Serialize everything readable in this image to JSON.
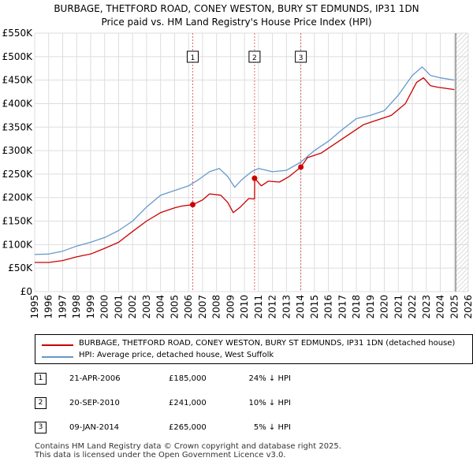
{
  "title": {
    "line1": "BURBAGE, THETFORD ROAD, CONEY WESTON, BURY ST EDMUNDS, IP31 1DN",
    "line2": "Price paid vs. HM Land Registry's House Price Index (HPI)"
  },
  "chart_data": {
    "type": "line",
    "title": "BURBAGE, THETFORD ROAD, CONEY WESTON, BURY ST EDMUNDS, IP31 1DN — Price paid vs. HM Land Registry's House Price Index (HPI)",
    "xlabel": "",
    "ylabel": "",
    "xlim": [
      1995,
      2026
    ],
    "ylim": [
      0,
      550000
    ],
    "grid": true,
    "x_ticks": [
      1995,
      1996,
      1997,
      1998,
      1999,
      2000,
      2001,
      2002,
      2003,
      2004,
      2005,
      2006,
      2007,
      2008,
      2009,
      2010,
      2011,
      2012,
      2013,
      2014,
      2015,
      2016,
      2017,
      2018,
      2019,
      2020,
      2021,
      2022,
      2023,
      2024,
      2025,
      2026
    ],
    "y_ticks": [
      {
        "value": 0,
        "label": "£0"
      },
      {
        "value": 50000,
        "label": "£50K"
      },
      {
        "value": 100000,
        "label": "£100K"
      },
      {
        "value": 150000,
        "label": "£150K"
      },
      {
        "value": 200000,
        "label": "£200K"
      },
      {
        "value": 250000,
        "label": "£250K"
      },
      {
        "value": 300000,
        "label": "£300K"
      },
      {
        "value": 350000,
        "label": "£350K"
      },
      {
        "value": 400000,
        "label": "£400K"
      },
      {
        "value": 450000,
        "label": "£450K"
      },
      {
        "value": 500000,
        "label": "£500K"
      },
      {
        "value": 550000,
        "label": "£550K"
      }
    ],
    "future_shading_from": 2025.1,
    "series": [
      {
        "name": "BURBAGE, THETFORD ROAD, CONEY WESTON, BURY ST EDMUNDS, IP31 1DN (detached house)",
        "color": "#cc0000",
        "points": [
          [
            1995.0,
            62000
          ],
          [
            1996.0,
            62000
          ],
          [
            1997.0,
            66000
          ],
          [
            1998.0,
            74000
          ],
          [
            1999.0,
            80000
          ],
          [
            2000.0,
            92000
          ],
          [
            2001.0,
            105000
          ],
          [
            2002.0,
            128000
          ],
          [
            2003.0,
            150000
          ],
          [
            2004.0,
            168000
          ],
          [
            2005.0,
            178000
          ],
          [
            2005.5,
            182000
          ],
          [
            2006.3,
            185000
          ],
          [
            2007.0,
            195000
          ],
          [
            2007.5,
            208000
          ],
          [
            2008.3,
            205000
          ],
          [
            2008.8,
            190000
          ],
          [
            2009.2,
            168000
          ],
          [
            2009.7,
            180000
          ],
          [
            2010.3,
            198000
          ],
          [
            2010.72,
            197000
          ],
          [
            2010.73,
            241000
          ],
          [
            2011.2,
            225000
          ],
          [
            2011.7,
            235000
          ],
          [
            2012.5,
            233000
          ],
          [
            2013.2,
            245000
          ],
          [
            2014.03,
            265000
          ],
          [
            2014.5,
            285000
          ],
          [
            2015.5,
            295000
          ],
          [
            2016.5,
            315000
          ],
          [
            2017.5,
            335000
          ],
          [
            2018.5,
            355000
          ],
          [
            2019.5,
            365000
          ],
          [
            2020.5,
            375000
          ],
          [
            2021.5,
            400000
          ],
          [
            2022.3,
            445000
          ],
          [
            2022.8,
            455000
          ],
          [
            2023.3,
            438000
          ],
          [
            2023.8,
            435000
          ],
          [
            2024.5,
            432000
          ],
          [
            2025.0,
            430000
          ]
        ]
      },
      {
        "name": "HPI: Average price, detached house, West Suffolk",
        "color": "#6699cc",
        "points": [
          [
            1995.0,
            79000
          ],
          [
            1996.0,
            80000
          ],
          [
            1997.0,
            86000
          ],
          [
            1998.0,
            97000
          ],
          [
            1999.0,
            105000
          ],
          [
            2000.0,
            115000
          ],
          [
            2001.0,
            130000
          ],
          [
            2002.0,
            150000
          ],
          [
            2003.0,
            180000
          ],
          [
            2004.0,
            205000
          ],
          [
            2005.0,
            215000
          ],
          [
            2006.0,
            225000
          ],
          [
            2006.7,
            238000
          ],
          [
            2007.5,
            255000
          ],
          [
            2008.2,
            262000
          ],
          [
            2008.8,
            245000
          ],
          [
            2009.3,
            222000
          ],
          [
            2009.8,
            238000
          ],
          [
            2010.5,
            255000
          ],
          [
            2011.0,
            262000
          ],
          [
            2012.0,
            255000
          ],
          [
            2013.0,
            258000
          ],
          [
            2014.0,
            275000
          ],
          [
            2015.0,
            300000
          ],
          [
            2016.0,
            320000
          ],
          [
            2017.0,
            345000
          ],
          [
            2018.0,
            368000
          ],
          [
            2019.0,
            375000
          ],
          [
            2020.0,
            385000
          ],
          [
            2021.0,
            418000
          ],
          [
            2022.0,
            460000
          ],
          [
            2022.7,
            478000
          ],
          [
            2023.3,
            460000
          ],
          [
            2024.0,
            455000
          ],
          [
            2025.0,
            450000
          ]
        ]
      }
    ],
    "sales": [
      {
        "id": "1",
        "x": 2006.3,
        "value": 185000
      },
      {
        "id": "2",
        "x": 2010.72,
        "value": 241000
      },
      {
        "id": "3",
        "x": 2014.03,
        "value": 265000
      }
    ]
  },
  "legend": {
    "red_label": "BURBAGE, THETFORD ROAD, CONEY WESTON, BURY ST EDMUNDS, IP31 1DN (detached house)",
    "blue_label": "HPI: Average price, detached house, West Suffolk",
    "red_color": "#cc0000",
    "blue_color": "#6699cc"
  },
  "sales_table": [
    {
      "num": "1",
      "date": "21-APR-2006",
      "price": "£185,000",
      "hpi": "24% ↓ HPI"
    },
    {
      "num": "2",
      "date": "20-SEP-2010",
      "price": "£241,000",
      "hpi": "10% ↓ HPI"
    },
    {
      "num": "3",
      "date": "09-JAN-2014",
      "price": "£265,000",
      "hpi": "5% ↓ HPI"
    }
  ],
  "footer": {
    "line1": "Contains HM Land Registry data © Crown copyright and database right 2025.",
    "line2": "This data is licensed under the Open Government Licence v3.0."
  }
}
